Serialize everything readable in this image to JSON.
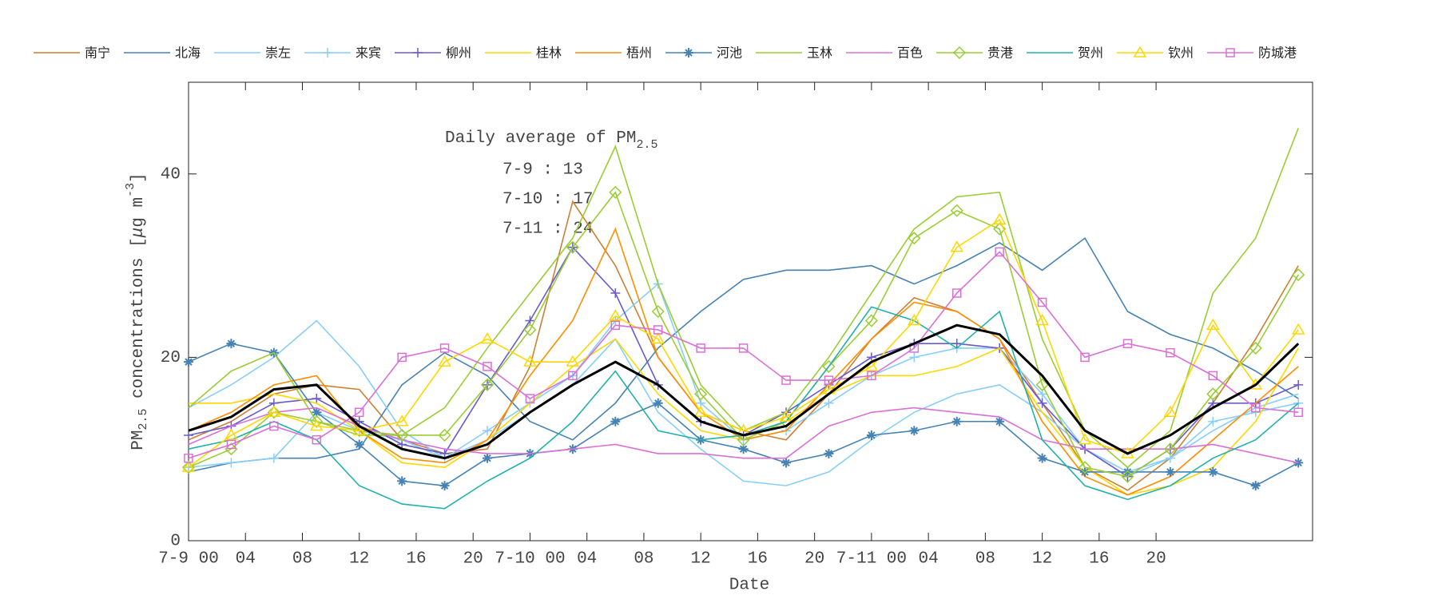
{
  "chart_data": {
    "type": "line",
    "xlabel": "Date",
    "ylabel": [
      "PM",
      "2.5",
      " concentrations [",
      "μ",
      "g m",
      "-3",
      "]"
    ],
    "annotation": {
      "title": [
        "Daily average of PM",
        "2.5"
      ],
      "lines": [
        "7-9 : 13",
        "7-10 : 17",
        "7-11 : 24"
      ]
    },
    "x": [
      0,
      3,
      6,
      9,
      12,
      15,
      18,
      21,
      24,
      27,
      30,
      33,
      36,
      39,
      42,
      45,
      48,
      51,
      54,
      57,
      60,
      63,
      66,
      69,
      72,
      75,
      78
    ],
    "xlim": [
      0,
      79
    ],
    "xticks": [
      {
        "value": 0,
        "label": "7-9 00"
      },
      {
        "value": 4,
        "label": "04"
      },
      {
        "value": 8,
        "label": "08"
      },
      {
        "value": 12,
        "label": "12"
      },
      {
        "value": 16,
        "label": "16"
      },
      {
        "value": 20,
        "label": "20"
      },
      {
        "value": 24,
        "label": "7-10 00"
      },
      {
        "value": 28,
        "label": "04"
      },
      {
        "value": 32,
        "label": "08"
      },
      {
        "value": 36,
        "label": "12"
      },
      {
        "value": 40,
        "label": "16"
      },
      {
        "value": 44,
        "label": "20"
      },
      {
        "value": 48,
        "label": "7-11 00"
      },
      {
        "value": 52,
        "label": "04"
      },
      {
        "value": 56,
        "label": "08"
      },
      {
        "value": 60,
        "label": "12"
      },
      {
        "value": 64,
        "label": "16"
      },
      {
        "value": 68,
        "label": "20"
      }
    ],
    "ylim": [
      0,
      50
    ],
    "yticks": [
      0,
      20,
      40
    ],
    "series": [
      {
        "name": "南宁",
        "color": "#cd7f32",
        "values": [
          11,
          13,
          16,
          17,
          16.5,
          11,
          9.5,
          10,
          19,
          37,
          30,
          20,
          14,
          12,
          11,
          16,
          22,
          26.5,
          25,
          22,
          15,
          8,
          5.5,
          9,
          15,
          22,
          30
        ]
      },
      {
        "name": "北海",
        "color": "#4682b4",
        "values": [
          7.5,
          8.5,
          9,
          9,
          10,
          17,
          20.5,
          18,
          13,
          11,
          15,
          21,
          25,
          28.5,
          29.5,
          29.5,
          30,
          28,
          30,
          32.5,
          29.5,
          33,
          25,
          22.5,
          21,
          18.5,
          15.5
        ]
      },
      {
        "name": "崇左",
        "color": "#87cefa",
        "values": [
          14.5,
          17,
          20,
          24,
          19,
          12,
          9,
          11,
          14,
          17,
          22,
          14,
          10,
          6.5,
          6,
          7.5,
          11,
          14,
          16,
          17,
          14,
          10,
          7.5,
          9,
          12,
          14.5,
          16
        ]
      },
      {
        "name": "来宾",
        "color": "#87cefa",
        "marker": "+",
        "values": [
          8,
          8.5,
          9,
          14,
          12,
          11,
          9,
          12,
          15,
          18,
          24,
          28,
          15,
          11,
          12,
          15,
          18,
          20,
          21,
          21,
          16,
          10,
          7,
          9,
          13,
          14,
          15
        ]
      },
      {
        "name": "柳州",
        "color": "#6a5acd",
        "marker": "+",
        "values": [
          11.5,
          12.5,
          15,
          15.5,
          13,
          10.5,
          9.5,
          17,
          24,
          32,
          27,
          17,
          13,
          11.5,
          14,
          17,
          20,
          21.5,
          21.5,
          21,
          15,
          10,
          7,
          10,
          15,
          15,
          17
        ]
      },
      {
        "name": "桂林",
        "color": "#ffd700",
        "values": [
          15,
          15,
          16,
          15,
          12,
          8.5,
          8,
          11,
          15,
          19,
          22,
          16,
          12,
          11,
          13,
          16,
          18,
          18,
          19,
          21,
          14,
          8,
          5,
          6,
          8,
          13,
          21
        ]
      },
      {
        "name": "梧州",
        "color": "#ff8c00",
        "values": [
          12,
          14,
          17,
          18,
          12,
          9,
          8.5,
          11,
          18,
          24,
          34,
          20,
          14,
          11,
          12,
          17,
          22,
          26,
          25,
          22,
          13,
          7,
          5,
          7,
          11,
          15,
          19
        ]
      },
      {
        "name": "河池",
        "color": "#4682b4",
        "marker": "*",
        "values": [
          19.5,
          21.5,
          20.5,
          14,
          10.5,
          6.5,
          6,
          9,
          9.5,
          10,
          13,
          15,
          11,
          10,
          8.5,
          9.5,
          11.5,
          12,
          13,
          13,
          9,
          7.5,
          7.5,
          7.5,
          7.5,
          6,
          8.5
        ]
      },
      {
        "name": "玉林",
        "color": "#9acd32",
        "values": [
          14.5,
          18.5,
          20.5,
          13,
          11.5,
          11.5,
          14.5,
          21,
          27,
          33,
          43,
          28,
          17,
          12,
          14,
          20,
          27,
          34,
          37.5,
          38,
          22,
          12,
          8,
          12,
          27,
          33,
          45
        ]
      },
      {
        "name": "百色",
        "color": "#da70d6",
        "values": [
          10.5,
          12.5,
          14,
          14.5,
          12.5,
          11,
          10,
          9.5,
          9.5,
          10,
          10.5,
          9.5,
          9.5,
          9,
          9,
          12.5,
          14,
          14.5,
          14,
          13.5,
          11,
          10,
          10,
          10,
          10.5,
          9.5,
          8.5
        ]
      },
      {
        "name": "贵港",
        "color": "#9acd32",
        "marker": "diamond",
        "values": [
          8,
          10,
          14,
          13,
          12,
          11.5,
          11.5,
          17,
          23,
          32,
          38,
          25,
          16,
          11,
          13,
          19,
          24,
          33,
          36,
          34,
          17,
          8,
          7,
          10,
          16,
          21,
          29
        ]
      },
      {
        "name": "贺州",
        "color": "#20b2aa",
        "values": [
          10,
          11,
          13,
          11,
          6,
          4,
          3.5,
          6.5,
          9,
          13,
          18.5,
          12,
          11,
          11.5,
          13,
          19,
          25.5,
          24,
          21,
          25,
          11,
          6,
          4.5,
          6,
          9,
          11,
          15
        ]
      },
      {
        "name": "钦州",
        "color": "#ffd700",
        "marker": "triangle",
        "values": [
          8,
          11.5,
          14,
          12.5,
          12,
          13,
          19.5,
          22,
          19.5,
          19.5,
          24.5,
          22,
          14,
          12,
          13.5,
          16.5,
          19,
          24,
          32,
          35,
          24,
          11,
          9.5,
          14,
          23.5,
          17,
          23
        ]
      },
      {
        "name": "防城港",
        "color": "#da70d6",
        "marker": "square",
        "values": [
          9,
          10.5,
          12.5,
          11,
          14,
          20,
          21,
          19,
          15.5,
          18,
          23.5,
          23,
          21,
          21,
          17.5,
          17.5,
          18,
          21,
          27,
          31.5,
          26,
          20,
          21.5,
          20.5,
          18,
          14.5,
          14
        ]
      },
      {
        "color": "#000000",
        "width": 3,
        "values": [
          12,
          13.5,
          16.5,
          17,
          12.5,
          10,
          9,
          10.5,
          14,
          17,
          19.5,
          17,
          13,
          11.5,
          12.5,
          16,
          19.5,
          21.5,
          23.5,
          22.5,
          18,
          12,
          9.5,
          11.5,
          14.5,
          17,
          21.5
        ]
      }
    ]
  }
}
